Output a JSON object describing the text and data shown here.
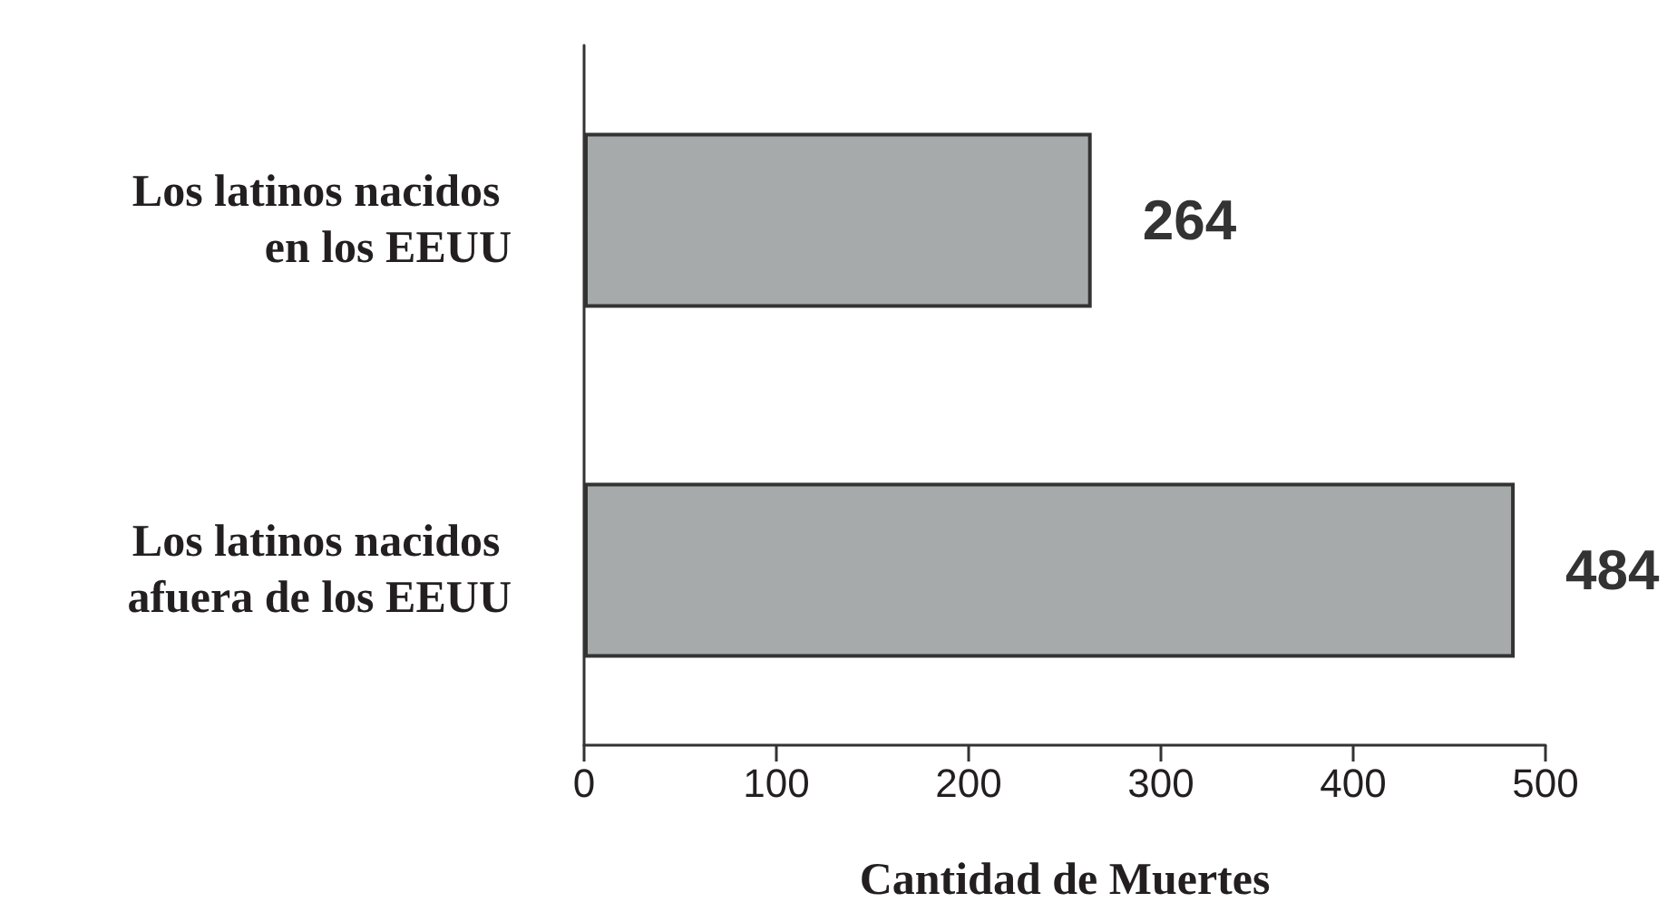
{
  "chart_data": {
    "type": "bar",
    "orientation": "horizontal",
    "categories": [
      "Los latinos nacidos en los EEUU",
      "Los latinos nacidos afuera de los EEUU"
    ],
    "values": [
      264,
      484
    ],
    "color": "#a7aaab",
    "xlabel": "Cantidad de Muertes",
    "xlim": [
      0,
      500
    ],
    "xticks": [
      0,
      100,
      200,
      300,
      400,
      500
    ],
    "data_labels": true
  }
}
